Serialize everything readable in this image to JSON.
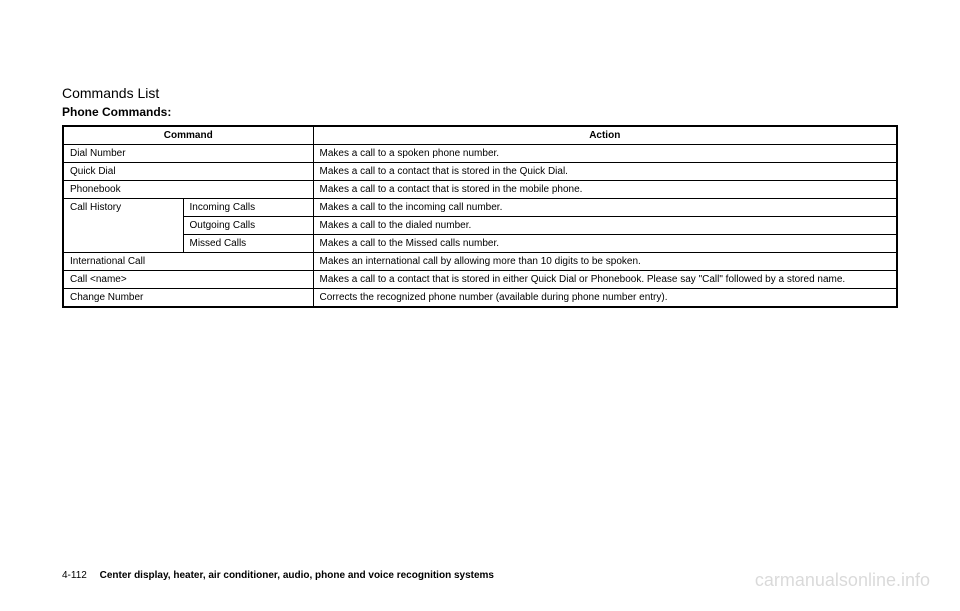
{
  "title": "Commands List",
  "subtitle": "Phone Commands:",
  "table": {
    "headers": {
      "command": "Command",
      "action": "Action"
    },
    "rows": {
      "dial_number": {
        "command": "Dial Number",
        "action": "Makes a call to a spoken phone number."
      },
      "quick_dial": {
        "command": "Quick Dial",
        "action": "Makes a call to a contact that is stored in the Quick Dial."
      },
      "phonebook": {
        "command": "Phonebook",
        "action": "Makes a call to a contact that is stored in the mobile phone."
      },
      "call_history": {
        "command": "Call History",
        "incoming": {
          "sub": "Incoming Calls",
          "action": "Makes a call to the incoming call number."
        },
        "outgoing": {
          "sub": "Outgoing Calls",
          "action": "Makes a call to the dialed number."
        },
        "missed": {
          "sub": "Missed Calls",
          "action": "Makes a call to the Missed calls number."
        }
      },
      "international": {
        "command": "International Call",
        "action": "Makes an international call by allowing more than 10 digits to be spoken."
      },
      "call_name": {
        "command": "Call <name>",
        "action": "Makes a call to a contact that is stored in either Quick Dial or Phonebook. Please say \"Call\" followed by a stored name."
      },
      "change_number": {
        "command": "Change Number",
        "action": "Corrects the recognized phone number (available during phone number entry)."
      }
    }
  },
  "footer": {
    "page": "4-112",
    "section": "Center display, heater, air conditioner, audio, phone and voice recognition systems"
  },
  "watermark": "carmanualsonline.info"
}
